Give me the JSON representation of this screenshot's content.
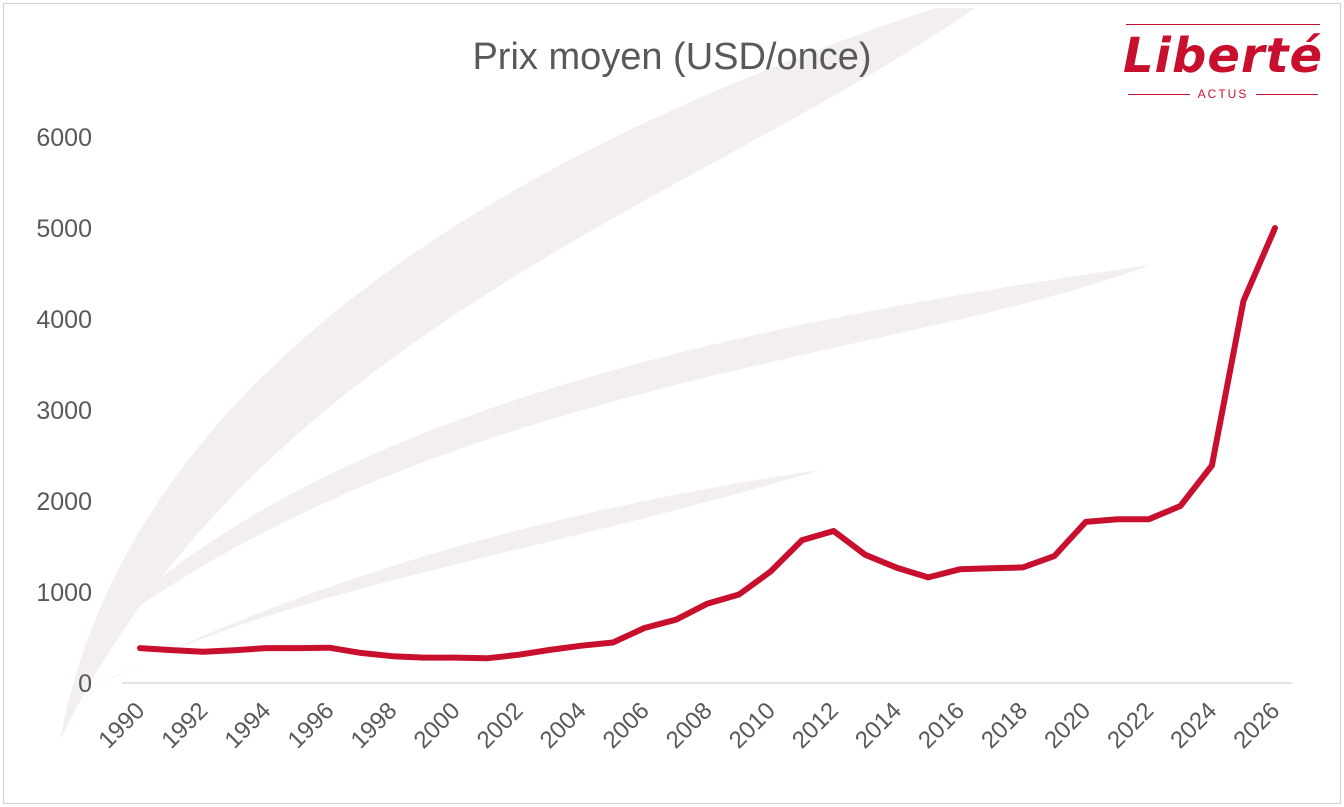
{
  "colors": {
    "line": "#c8102e",
    "text": "#595959",
    "axis": "#d9d9d9",
    "watermark": "#f3efef",
    "brand": "#c8102e"
  },
  "logo": {
    "word": "Liberté",
    "sub": "ACTUS"
  },
  "chart_data": {
    "type": "line",
    "title": "Prix moyen (USD/once)",
    "xlabel": "",
    "ylabel": "",
    "ylim": [
      0,
      6000
    ],
    "yticks": [
      0,
      1000,
      2000,
      3000,
      4000,
      5000,
      6000
    ],
    "xlim": [
      1990,
      2026
    ],
    "xticks": [
      "1990",
      "1992",
      "1994",
      "1996",
      "1998",
      "2000",
      "2002",
      "2004",
      "2006",
      "2008",
      "2010",
      "2012",
      "2014",
      "2016",
      "2018",
      "2020",
      "2022",
      "2024",
      "2026"
    ],
    "grid": false,
    "legend": "none",
    "series": [
      {
        "x": [
          1990,
          1991,
          1992,
          1993,
          1994,
          1995,
          1996,
          1997,
          1998,
          1999,
          2000,
          2001,
          2002,
          2003,
          2004,
          2005,
          2006,
          2007,
          2008,
          2009,
          2010,
          2011,
          2012,
          2013,
          2014,
          2015,
          2016,
          2017,
          2018,
          2019,
          2020,
          2021,
          2022,
          2023,
          2024,
          2025,
          2026
        ],
        "y": [
          384,
          362,
          344,
          360,
          384,
          384,
          388,
          331,
          294,
          279,
          279,
          271,
          310,
          364,
          410,
          445,
          604,
          696,
          872,
          972,
          1225,
          1570,
          1670,
          1410,
          1267,
          1160,
          1250,
          1260,
          1270,
          1395,
          1770,
          1800,
          1800,
          1945,
          2390,
          4200,
          5000
        ]
      }
    ]
  }
}
